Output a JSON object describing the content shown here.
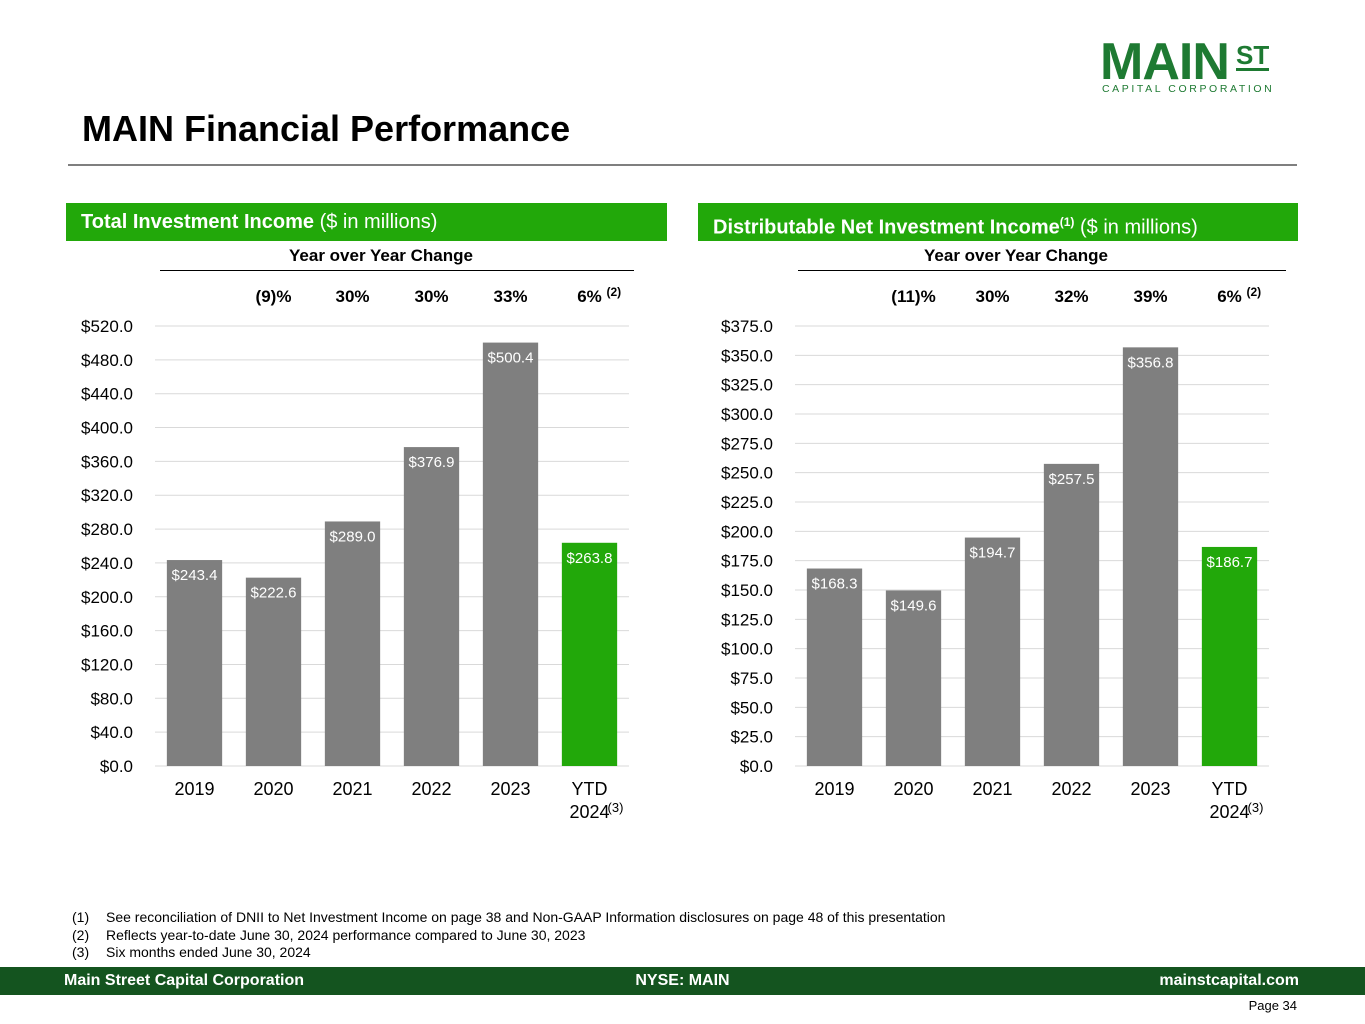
{
  "logo": {
    "main": "MAIN",
    "st": "ST",
    "sub": "CAPITAL CORPORATION"
  },
  "page_title": "MAIN Financial Performance",
  "colors": {
    "bar_gray": "#7f7f7f",
    "bar_green": "#22a80a",
    "header_green": "#22a80a",
    "footer_green": "#14541f",
    "logo_green": "#1e7a32"
  },
  "left_panel": {
    "header_bold": "Total Investment Income",
    "header_normal": " ($ in millions)",
    "yoy_title": "Year over Year Change"
  },
  "right_panel": {
    "header_bold": "Distributable Net Investment Income",
    "header_sup": "(1)",
    "header_normal": " ($ in millions)",
    "yoy_title": "Year over Year Change"
  },
  "chart_data": [
    {
      "type": "bar",
      "title": "Total Investment Income ($ in millions)",
      "categories": [
        "2019",
        "2020",
        "2021",
        "2022",
        "2023",
        "YTD 2024"
      ],
      "category_lines": [
        [
          "2019"
        ],
        [
          "2020"
        ],
        [
          "2021"
        ],
        [
          "2022"
        ],
        [
          "2023"
        ],
        [
          "YTD",
          "2024"
        ]
      ],
      "category_footnote": [
        "",
        "",
        "",
        "",
        "",
        "(3)"
      ],
      "values": [
        243.4,
        222.6,
        289.0,
        376.9,
        500.4,
        263.8
      ],
      "data_labels": [
        "$243.4",
        "$222.6",
        "$289.0",
        "$376.9",
        "$500.4",
        "$263.8"
      ],
      "bar_colors": [
        "#7f7f7f",
        "#7f7f7f",
        "#7f7f7f",
        "#7f7f7f",
        "#7f7f7f",
        "#22a80a"
      ],
      "yoy_change": [
        "",
        "(9)%",
        "30%",
        "30%",
        "33%",
        "6%"
      ],
      "yoy_footnote": [
        "",
        "",
        "",
        "",
        "",
        "(2)"
      ],
      "ylim": [
        0,
        520
      ],
      "yticks": [
        0,
        40,
        80,
        120,
        160,
        200,
        240,
        280,
        320,
        360,
        400,
        440,
        480,
        520
      ],
      "ytick_labels": [
        "$0.0",
        "$40.0",
        "$80.0",
        "$120.0",
        "$160.0",
        "$200.0",
        "$240.0",
        "$280.0",
        "$320.0",
        "$360.0",
        "$400.0",
        "$440.0",
        "$480.0",
        "$520.0"
      ],
      "grid": true,
      "xlabel": "",
      "ylabel": ""
    },
    {
      "type": "bar",
      "title": "Distributable Net Investment Income(1) ($ in millions)",
      "categories": [
        "2019",
        "2020",
        "2021",
        "2022",
        "2023",
        "YTD 2024"
      ],
      "category_lines": [
        [
          "2019"
        ],
        [
          "2020"
        ],
        [
          "2021"
        ],
        [
          "2022"
        ],
        [
          "2023"
        ],
        [
          "YTD",
          "2024"
        ]
      ],
      "category_footnote": [
        "",
        "",
        "",
        "",
        "",
        "(3)"
      ],
      "values": [
        168.3,
        149.6,
        194.7,
        257.5,
        356.8,
        186.7
      ],
      "data_labels": [
        "$168.3",
        "$149.6",
        "$194.7",
        "$257.5",
        "$356.8",
        "$186.7"
      ],
      "bar_colors": [
        "#7f7f7f",
        "#7f7f7f",
        "#7f7f7f",
        "#7f7f7f",
        "#7f7f7f",
        "#22a80a"
      ],
      "yoy_change": [
        "",
        "(11)%",
        "30%",
        "32%",
        "39%",
        "6%"
      ],
      "yoy_footnote": [
        "",
        "",
        "",
        "",
        "",
        "(2)"
      ],
      "ylim": [
        0,
        375
      ],
      "yticks": [
        0,
        25,
        50,
        75,
        100,
        125,
        150,
        175,
        200,
        225,
        250,
        275,
        300,
        325,
        350,
        375
      ],
      "ytick_labels": [
        "$0.0",
        "$25.0",
        "$50.0",
        "$75.0",
        "$100.0",
        "$125.0",
        "$150.0",
        "$175.0",
        "$200.0",
        "$225.0",
        "$250.0",
        "$275.0",
        "$300.0",
        "$325.0",
        "$350.0",
        "$375.0"
      ],
      "grid": true,
      "xlabel": "",
      "ylabel": ""
    }
  ],
  "footnotes": [
    {
      "num": "(1)",
      "text": "See reconciliation of DNII to Net Investment Income on page 38 and Non-GAAP Information disclosures on page 48 of this presentation"
    },
    {
      "num": "(2)",
      "text": "Reflects year-to-date June 30, 2024 performance compared to June 30, 2023"
    },
    {
      "num": "(3)",
      "text": "Six months ended June 30, 2024"
    }
  ],
  "footer": {
    "left": "Main Street Capital Corporation",
    "middle": "NYSE: MAIN",
    "right": "mainstcapital.com"
  },
  "page_number": "Page  34"
}
